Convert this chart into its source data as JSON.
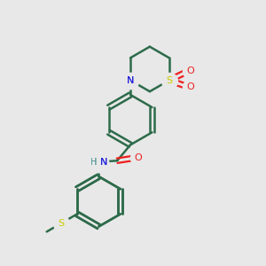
{
  "background_color": "#e8e8e8",
  "bond_color": "#2d6b4a",
  "bond_width": 1.8,
  "atom_colors": {
    "N": "#2020dd",
    "O": "#ee2020",
    "S": "#cccc00",
    "H": "#5a9a9a",
    "C": "#2d6b4a"
  },
  "figsize": [
    3.0,
    3.0
  ],
  "dpi": 100,
  "xlim": [
    0,
    10
  ],
  "ylim": [
    0,
    10
  ]
}
